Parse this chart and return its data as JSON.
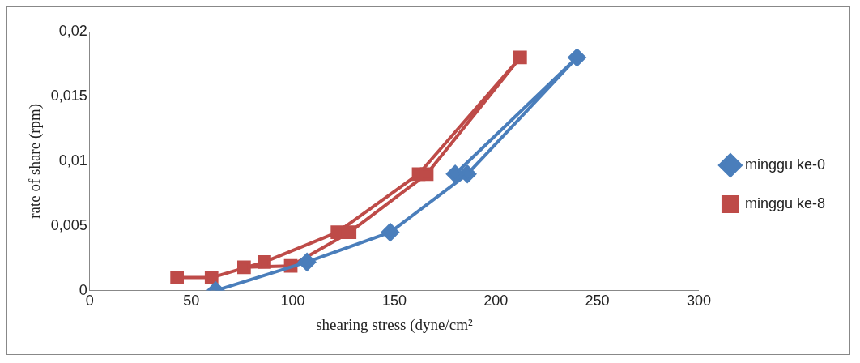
{
  "chart_data": {
    "type": "line",
    "xlabel": "shearing stress (dyne/cm²",
    "ylabel": "rate of share (rpm)",
    "xlim": [
      0,
      300
    ],
    "xticks": [
      0,
      50,
      100,
      150,
      200,
      250,
      300
    ],
    "ylim": [
      0,
      0.02
    ],
    "yticks": [
      0,
      {
        "value": 0.005,
        "label": "0,005"
      },
      {
        "value": 0.01,
        "label": "0,01"
      },
      {
        "value": 0.015,
        "label": "0,015"
      },
      {
        "value": 0.02,
        "label": "0,02"
      }
    ],
    "grid": false,
    "legend": "right",
    "line_style": "solid",
    "series": [
      {
        "name": "minggu ke-0",
        "color": "#4a7ebb",
        "marker": "diamond",
        "x": [
          62,
          107,
          148,
          186,
          240,
          180
        ],
        "values": [
          0,
          0.0022,
          0.0045,
          0.009,
          0.018,
          0.009
        ]
      },
      {
        "name": "minggu ke-8",
        "color": "#be4b48",
        "marker": "square",
        "x": [
          43,
          60,
          86,
          122,
          162,
          212,
          166,
          128,
          99,
          76
        ],
        "values": [
          0.001,
          0.001,
          0.0022,
          0.0045,
          0.009,
          0.018,
          0.009,
          0.0045,
          0.0019,
          0.0018
        ]
      }
    ]
  }
}
